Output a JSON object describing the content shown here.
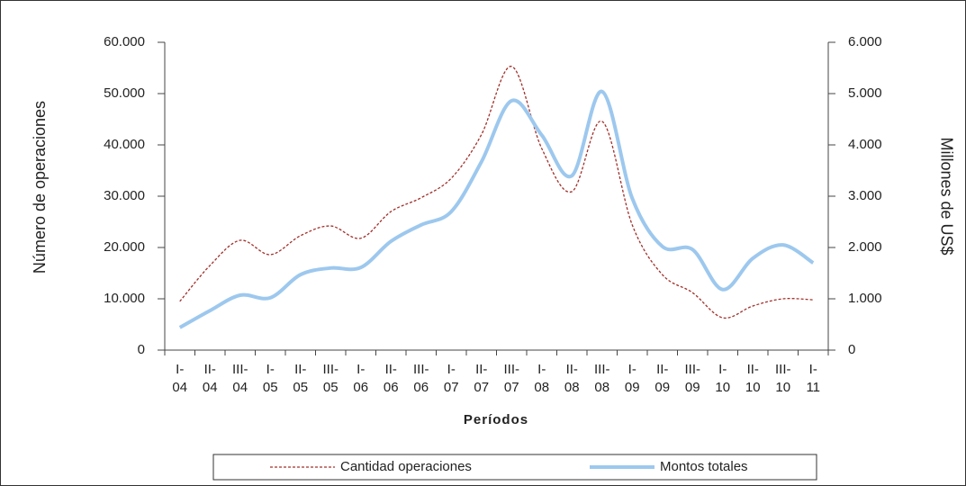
{
  "chart_data": {
    "type": "line",
    "x_label": "Períodos",
    "y_label": "Número de operaciones",
    "y2_label": "Millones de US$",
    "categories": [
      "I- 04",
      "II- 04",
      "III- 04",
      "I- 05",
      "II- 05",
      "III- 05",
      "I- 06",
      "II- 06",
      "III- 06",
      "I- 07",
      "II- 07",
      "III- 07",
      "I- 08",
      "II- 08",
      "III- 08",
      "I- 09",
      "II- 09",
      "III- 09",
      "I- 10",
      "II- 10",
      "III- 10",
      "I- 11"
    ],
    "series": [
      {
        "name": "Cantidad operaciones",
        "color": "#a0302a",
        "dash": true,
        "values": [
          9500,
          16500,
          21400,
          18600,
          22300,
          24200,
          21800,
          27000,
          29700,
          33500,
          42000,
          55300,
          39300,
          30900,
          44600,
          24400,
          14700,
          11200,
          6300,
          8600,
          10000,
          9800
        ]
      },
      {
        "name": "Montos totales",
        "color": "#9dc8ee",
        "axis": "y2",
        "values": [
          440,
          770,
          1070,
          1020,
          1470,
          1600,
          1610,
          2120,
          2440,
          2700,
          3670,
          4860,
          4190,
          3400,
          5040,
          2960,
          2020,
          1960,
          1180,
          1790,
          2050,
          1700
        ]
      }
    ],
    "ylim": [
      0,
      60000
    ],
    "yticks": [
      0,
      {
        "value": 10000,
        "label": "10.000"
      },
      {
        "value": 20000,
        "label": "20.000"
      },
      {
        "value": 30000,
        "label": "30.000"
      },
      {
        "value": 40000,
        "label": "40.000"
      },
      {
        "value": 50000,
        "label": "50.000"
      },
      {
        "value": 60000,
        "label": "60.000"
      }
    ],
    "y2lim": [
      0,
      6000
    ],
    "y2ticks": [
      0,
      {
        "value": 1000,
        "label": "1.000"
      },
      {
        "value": 2000,
        "label": "2.000"
      },
      {
        "value": 3000,
        "label": "3.000"
      },
      {
        "value": 4000,
        "label": "4.000"
      },
      {
        "value": 5000,
        "label": "5.000"
      },
      {
        "value": 6000,
        "label": "6.000"
      }
    ],
    "legend": "bottom"
  }
}
